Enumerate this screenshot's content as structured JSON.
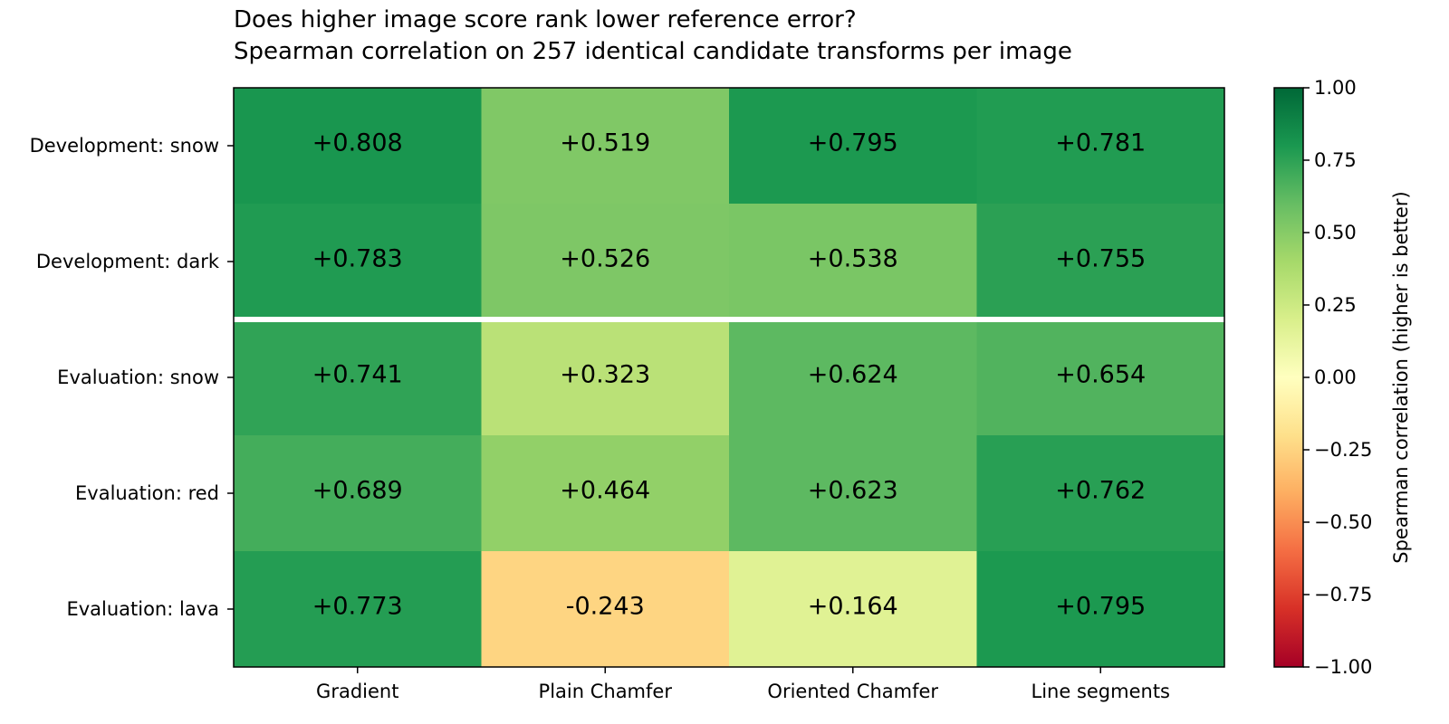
{
  "chart_data": {
    "type": "heatmap",
    "title": "Does higher image score rank lower reference error?\nSpearman correlation on 257 identical candidate transforms per image",
    "title_lines": [
      "Does higher image score rank lower reference error?",
      "Spearman correlation on 257 identical candidate transforms per image"
    ],
    "columns": [
      "Gradient",
      "Plain Chamfer",
      "Oriented Chamfer",
      "Line segments"
    ],
    "rows": [
      "Development: snow",
      "Development: dark",
      "Evaluation: snow",
      "Evaluation: red",
      "Evaluation: lava"
    ],
    "values": [
      [
        0.808,
        0.519,
        0.795,
        0.781
      ],
      [
        0.783,
        0.526,
        0.538,
        0.755
      ],
      [
        0.741,
        0.323,
        0.624,
        0.654
      ],
      [
        0.689,
        0.464,
        0.623,
        0.762
      ],
      [
        0.773,
        -0.243,
        0.164,
        0.795
      ]
    ],
    "value_labels": [
      [
        "+0.808",
        "+0.519",
        "+0.795",
        "+0.781"
      ],
      [
        "+0.783",
        "+0.526",
        "+0.538",
        "+0.755"
      ],
      [
        "+0.741",
        "+0.323",
        "+0.624",
        "+0.654"
      ],
      [
        "+0.689",
        "+0.464",
        "+0.623",
        "+0.762"
      ],
      [
        "+0.773",
        "-0.243",
        "+0.164",
        "+0.795"
      ]
    ],
    "colormap": "RdYlGn",
    "vmin": -1.0,
    "vmax": 1.0,
    "separator_after_row": 1,
    "colorbar": {
      "label": "Spearman correlation (higher is better)",
      "ticks": [
        1.0,
        0.75,
        0.5,
        0.25,
        0.0,
        -0.25,
        -0.5,
        -0.75,
        -1.0
      ],
      "tick_labels": [
        "1.00",
        "0.75",
        "0.50",
        "0.25",
        "0.00",
        "−0.25",
        "−0.50",
        "−0.75",
        "−1.00"
      ]
    }
  }
}
